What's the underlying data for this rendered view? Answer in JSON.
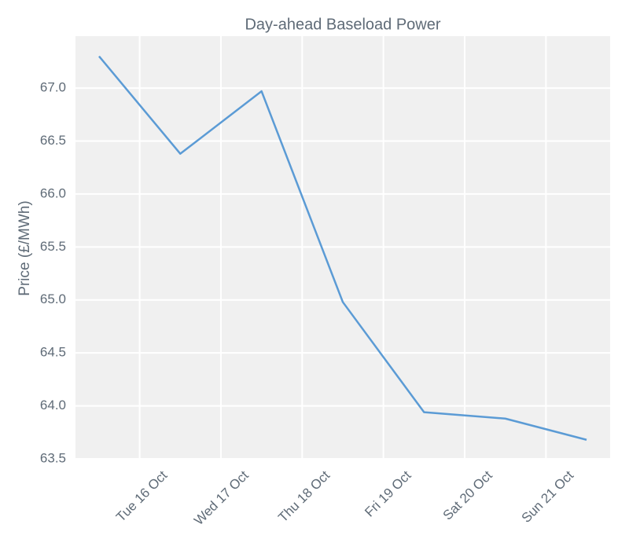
{
  "chart_data": {
    "type": "line",
    "title": "Day-ahead Baseload Power",
    "ylabel": "Price (£/MWh)",
    "x": [
      15.5,
      16.5,
      17.5,
      18.5,
      19.5,
      20.5,
      21.5
    ],
    "series": [
      {
        "name": "Day-ahead Baseload Power",
        "color": "#5b9bd5",
        "values": [
          67.3,
          66.38,
          66.97,
          64.98,
          63.94,
          63.88,
          63.68
        ]
      }
    ],
    "xlim": [
      15.21,
      21.79
    ],
    "xticks": [
      {
        "value": 16,
        "label": "Tue 16 Oct"
      },
      {
        "value": 17,
        "label": "Wed 17 Oct"
      },
      {
        "value": 18,
        "label": "Thu 18 Oct"
      },
      {
        "value": 19,
        "label": "Fri 19 Oct"
      },
      {
        "value": 20,
        "label": "Sat 20 Oct"
      },
      {
        "value": 21,
        "label": "Sun 21 Oct"
      }
    ],
    "ylim": [
      63.5,
      67.49
    ],
    "yticks": [
      63.5,
      {
        "value": 64,
        "label": "64.0"
      },
      64.5,
      {
        "value": 65,
        "label": "65.0"
      },
      65.5,
      {
        "value": 66,
        "label": "66.0"
      },
      66.5,
      {
        "value": 67,
        "label": "67.0"
      }
    ],
    "grid": true
  }
}
